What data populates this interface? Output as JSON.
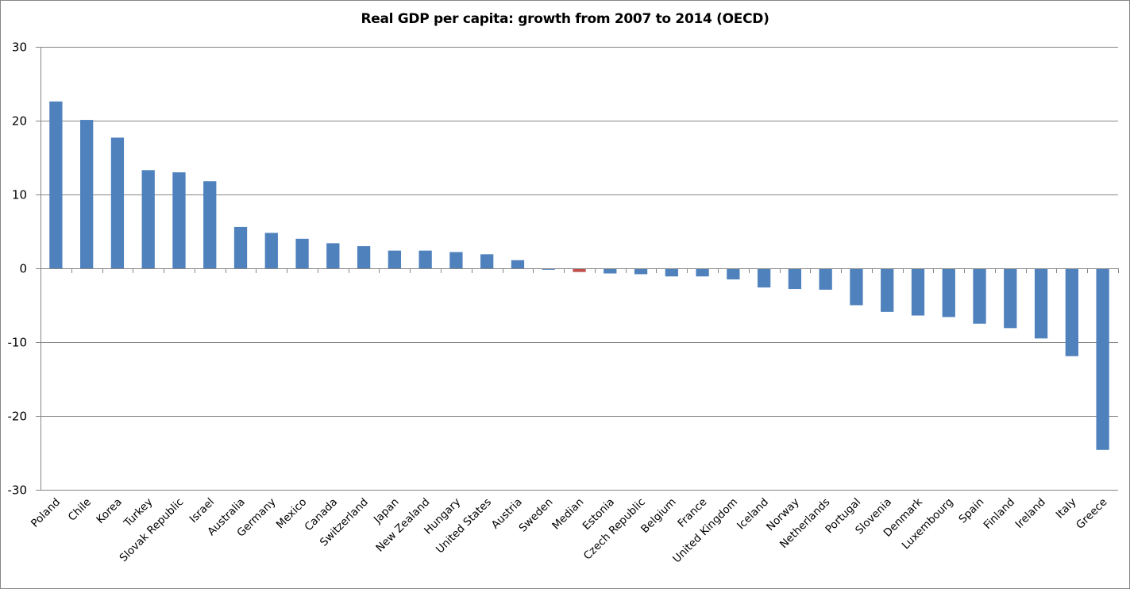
{
  "chart_data": {
    "type": "bar",
    "title": "Real GDP per capita: growth from 2007 to 2014 (OECD)",
    "xlabel": "",
    "ylabel": "",
    "ylim": [
      -30,
      30
    ],
    "yticks": [
      30,
      20,
      10,
      0,
      -10,
      -20,
      -30
    ],
    "grid": true,
    "legend": "none",
    "colors": {
      "default": "#4F81BD",
      "highlight": "#C0504D",
      "grid": "#868686"
    },
    "highlight_category": "Median",
    "categories": [
      "Poland",
      "Chile",
      "Korea",
      "Turkey",
      "Slovak Republic",
      "Israel",
      "Australia",
      "Germany",
      "Mexico",
      "Canada",
      "Switzerland",
      "Japan",
      "New Zealand",
      "Hungary",
      "United States",
      "Austria",
      "Sweden",
      "Median",
      "Estonia",
      "Czech Republic",
      "Belgium",
      "France",
      "United Kingdom",
      "Iceland",
      "Norway",
      "Netherlands",
      "Portugal",
      "Slovenia",
      "Denmark",
      "Luxembourg",
      "Spain",
      "Finland",
      "Ireland",
      "Italy",
      "Greece"
    ],
    "values": [
      22.6,
      20.1,
      17.7,
      13.3,
      13.0,
      11.8,
      5.6,
      4.8,
      4.0,
      3.4,
      3.0,
      2.4,
      2.4,
      2.2,
      1.9,
      1.1,
      -0.2,
      -0.5,
      -0.7,
      -0.8,
      -1.1,
      -1.1,
      -1.5,
      -2.6,
      -2.8,
      -2.9,
      -5.0,
      -5.9,
      -6.4,
      -6.6,
      -7.5,
      -8.1,
      -9.5,
      -11.9,
      -24.6
    ]
  }
}
